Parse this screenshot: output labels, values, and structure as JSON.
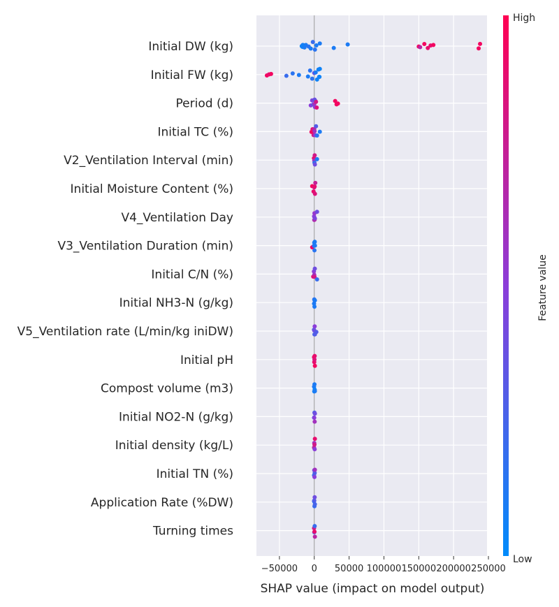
{
  "chart_data": {
    "type": "scatter",
    "subtype": "shap-beeswarm",
    "xlabel": "SHAP value (impact on model output)",
    "xlim": [
      -83000,
      248000
    ],
    "xticks": [
      -50000,
      0,
      50000,
      100000,
      150000,
      200000,
      250000
    ],
    "xtick_labels": [
      "−50000",
      "0",
      "50000",
      "100000",
      "150000",
      "200000",
      "250000"
    ],
    "grid": true,
    "colorbar": {
      "label": "Feature value",
      "high_label": "High",
      "low_label": "Low",
      "low_color": "#008bfb",
      "mid_color": "#8b3dd9",
      "high_color": "#ff0052"
    },
    "features": [
      {
        "name": "Initial DW (kg)",
        "points": [
          {
            "x": -18000,
            "f": 0.05
          },
          {
            "x": -17000,
            "f": 0.05
          },
          {
            "x": -16500,
            "f": 0.1
          },
          {
            "x": -16000,
            "f": 0.05
          },
          {
            "x": -15500,
            "f": 0.08
          },
          {
            "x": -15000,
            "f": 0.05
          },
          {
            "x": -14000,
            "f": 0.1
          },
          {
            "x": -12000,
            "f": 0.1
          },
          {
            "x": -8000,
            "f": 0.15
          },
          {
            "x": -5000,
            "f": 0.1
          },
          {
            "x": -2000,
            "f": 0.2
          },
          {
            "x": 1000,
            "f": 0.15
          },
          {
            "x": 3000,
            "f": 0.1
          },
          {
            "x": 8000,
            "f": 0.1
          },
          {
            "x": 28000,
            "f": 0.1
          },
          {
            "x": 48000,
            "f": 0.1
          },
          {
            "x": 150000,
            "f": 0.95
          },
          {
            "x": 152000,
            "f": 0.7
          },
          {
            "x": 158000,
            "f": 0.95
          },
          {
            "x": 163000,
            "f": 0.9
          },
          {
            "x": 167000,
            "f": 0.9
          },
          {
            "x": 171000,
            "f": 0.95
          },
          {
            "x": 236000,
            "f": 0.95
          },
          {
            "x": 238000,
            "f": 0.95
          }
        ]
      },
      {
        "name": "Initial FW (kg)",
        "points": [
          {
            "x": -68000,
            "f": 0.95
          },
          {
            "x": -65000,
            "f": 0.9
          },
          {
            "x": -62000,
            "f": 0.95
          },
          {
            "x": -40000,
            "f": 0.2
          },
          {
            "x": -31000,
            "f": 0.15
          },
          {
            "x": -22000,
            "f": 0.1
          },
          {
            "x": -9000,
            "f": 0.1
          },
          {
            "x": -6000,
            "f": 0.15
          },
          {
            "x": -3000,
            "f": 0.15
          },
          {
            "x": 0,
            "f": 0.35
          },
          {
            "x": 2000,
            "f": 0.1
          },
          {
            "x": 4000,
            "f": 0.05
          },
          {
            "x": 6000,
            "f": 0.05
          },
          {
            "x": 7000,
            "f": 0.1
          },
          {
            "x": 7500,
            "f": 0.05
          },
          {
            "x": 8000,
            "f": 0.05
          }
        ]
      },
      {
        "name": "Period (d)",
        "points": [
          {
            "x": -5000,
            "f": 0.5
          },
          {
            "x": -3000,
            "f": 0.45
          },
          {
            "x": -1500,
            "f": 0.3
          },
          {
            "x": 0,
            "f": 0.6
          },
          {
            "x": 500,
            "f": 0.4
          },
          {
            "x": 1000,
            "f": 0.5
          },
          {
            "x": 1500,
            "f": 0.3
          },
          {
            "x": 2500,
            "f": 0.8
          },
          {
            "x": 3500,
            "f": 0.85
          },
          {
            "x": 30000,
            "f": 0.95
          },
          {
            "x": 32000,
            "f": 0.95
          },
          {
            "x": 34000,
            "f": 0.95
          }
        ]
      },
      {
        "name": "Initial TC (%)",
        "points": [
          {
            "x": -4000,
            "f": 0.95
          },
          {
            "x": -2500,
            "f": 0.9
          },
          {
            "x": -1000,
            "f": 0.8
          },
          {
            "x": 0,
            "f": 0.7
          },
          {
            "x": 500,
            "f": 0.6
          },
          {
            "x": 1500,
            "f": 0.5
          },
          {
            "x": 2500,
            "f": 0.3
          },
          {
            "x": 4000,
            "f": 0.15
          },
          {
            "x": 8000,
            "f": 0.1
          }
        ]
      },
      {
        "name": "V2_Ventilation Interval (min)",
        "points": [
          {
            "x": -500,
            "f": 0.9
          },
          {
            "x": 0,
            "f": 0.6
          },
          {
            "x": 300,
            "f": 0.2
          },
          {
            "x": 600,
            "f": 0.8
          },
          {
            "x": 900,
            "f": 0.4
          },
          {
            "x": 4000,
            "f": 0.1
          }
        ]
      },
      {
        "name": "Initial Moisture Content (%)",
        "points": [
          {
            "x": -3000,
            "f": 0.95
          },
          {
            "x": -1000,
            "f": 0.9
          },
          {
            "x": 0,
            "f": 0.8
          },
          {
            "x": 500,
            "f": 0.9
          },
          {
            "x": 1000,
            "f": 0.85
          },
          {
            "x": 1500,
            "f": 0.75
          }
        ]
      },
      {
        "name": "V4_Ventilation Day",
        "points": [
          {
            "x": -300,
            "f": 0.5
          },
          {
            "x": 0,
            "f": 0.6
          },
          {
            "x": 300,
            "f": 0.55
          },
          {
            "x": 600,
            "f": 0.7
          },
          {
            "x": 900,
            "f": 0.45
          },
          {
            "x": 4000,
            "f": 0.4
          }
        ]
      },
      {
        "name": "V3_Ventilation Duration (min)",
        "points": [
          {
            "x": -3000,
            "f": 0.95
          },
          {
            "x": -500,
            "f": 0.2
          },
          {
            "x": 0,
            "f": 0.1
          },
          {
            "x": 300,
            "f": 0.15
          },
          {
            "x": 700,
            "f": 0.1
          },
          {
            "x": 1000,
            "f": 0.1
          }
        ]
      },
      {
        "name": "Initial C/N (%)",
        "points": [
          {
            "x": -1500,
            "f": 0.9
          },
          {
            "x": -500,
            "f": 0.5
          },
          {
            "x": 0,
            "f": 0.6
          },
          {
            "x": 400,
            "f": 0.8
          },
          {
            "x": 800,
            "f": 0.4
          },
          {
            "x": 4000,
            "f": 0.2
          }
        ]
      },
      {
        "name": "Initial NH3-N (g/kg)",
        "points": [
          {
            "x": -300,
            "f": 0.1
          },
          {
            "x": 0,
            "f": 0.15
          },
          {
            "x": 300,
            "f": 0.1
          },
          {
            "x": 600,
            "f": 0.15
          },
          {
            "x": 900,
            "f": 0.1
          }
        ]
      },
      {
        "name": "V5_Ventilation rate (L/min/kg iniDW)",
        "points": [
          {
            "x": -400,
            "f": 0.3
          },
          {
            "x": 0,
            "f": 0.4
          },
          {
            "x": 300,
            "f": 0.2
          },
          {
            "x": 600,
            "f": 0.5
          },
          {
            "x": 1000,
            "f": 0.3
          },
          {
            "x": 3000,
            "f": 0.3
          }
        ]
      },
      {
        "name": "Initial pH",
        "points": [
          {
            "x": -300,
            "f": 0.95
          },
          {
            "x": 0,
            "f": 0.9
          },
          {
            "x": 300,
            "f": 0.85
          },
          {
            "x": 600,
            "f": 0.9
          },
          {
            "x": 900,
            "f": 0.95
          }
        ]
      },
      {
        "name": "Compost volume (m3)",
        "points": [
          {
            "x": -300,
            "f": 0.1
          },
          {
            "x": 0,
            "f": 0.05
          },
          {
            "x": 300,
            "f": 0.1
          },
          {
            "x": 600,
            "f": 0.05
          },
          {
            "x": 900,
            "f": 0.1
          }
        ]
      },
      {
        "name": "Initial NO2-N (g/kg)",
        "points": [
          {
            "x": -300,
            "f": 0.2
          },
          {
            "x": 0,
            "f": 0.5
          },
          {
            "x": 300,
            "f": 0.3
          },
          {
            "x": 600,
            "f": 0.6
          },
          {
            "x": 900,
            "f": 0.4
          }
        ]
      },
      {
        "name": "Initial density (kg/L)",
        "points": [
          {
            "x": -300,
            "f": 0.7
          },
          {
            "x": 0,
            "f": 0.6
          },
          {
            "x": 300,
            "f": 0.8
          },
          {
            "x": 600,
            "f": 0.5
          },
          {
            "x": 900,
            "f": 0.9
          }
        ]
      },
      {
        "name": "Initial TN (%)",
        "points": [
          {
            "x": -300,
            "f": 0.2
          },
          {
            "x": 0,
            "f": 0.4
          },
          {
            "x": 300,
            "f": 0.5
          },
          {
            "x": 600,
            "f": 0.3
          },
          {
            "x": 900,
            "f": 0.6
          }
        ]
      },
      {
        "name": "Application Rate (%DW)",
        "points": [
          {
            "x": -300,
            "f": 0.15
          },
          {
            "x": 0,
            "f": 0.3
          },
          {
            "x": 300,
            "f": 0.2
          },
          {
            "x": 600,
            "f": 0.4
          },
          {
            "x": 900,
            "f": 0.25
          }
        ]
      },
      {
        "name": "Turning times",
        "points": [
          {
            "x": -300,
            "f": 0.8
          },
          {
            "x": 0,
            "f": 0.3
          },
          {
            "x": 300,
            "f": 0.9
          },
          {
            "x": 600,
            "f": 0.2
          },
          {
            "x": 900,
            "f": 0.7
          }
        ]
      }
    ]
  }
}
